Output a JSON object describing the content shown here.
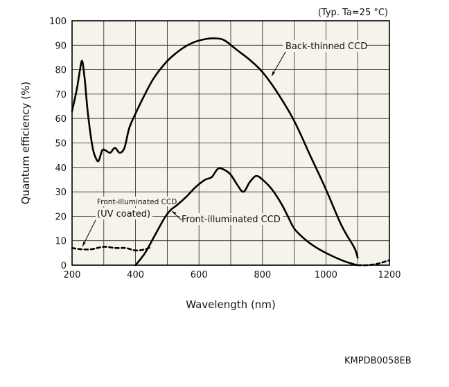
{
  "chart_data": {
    "type": "line",
    "xlabel": "Wavelength (nm)",
    "ylabel": "Quantum efficiency (%)",
    "xlim": [
      200,
      1200
    ],
    "ylim": [
      0,
      100
    ],
    "xticks": [
      200,
      400,
      600,
      800,
      1000,
      1200
    ],
    "yticks": [
      0,
      10,
      20,
      30,
      40,
      50,
      60,
      70,
      80,
      90,
      100
    ],
    "grid": true,
    "note": "(Typ. Ta=25 °C)",
    "series": [
      {
        "name": "Back-thinned CCD",
        "x": [
          200,
          215,
          225,
          232,
          240,
          250,
          265,
          278,
          285,
          295,
          305,
          320,
          335,
          350,
          365,
          380,
          400,
          430,
          460,
          500,
          540,
          580,
          620,
          650,
          680,
          720,
          760,
          800,
          850,
          900,
          950,
          1000,
          1050,
          1090,
          1100
        ],
        "y": [
          63,
          72,
          80,
          83.5,
          76,
          62,
          48,
          43,
          43,
          47,
          47,
          46,
          48,
          46,
          48,
          56,
          62,
          70,
          77,
          83.5,
          88,
          91,
          92.5,
          92.8,
          92,
          88,
          84,
          79,
          70,
          59,
          45,
          31,
          16,
          7,
          3
        ]
      },
      {
        "name": "Front-illuminated CCD",
        "x": [
          400,
          430,
          460,
          490,
          510,
          530,
          560,
          590,
          620,
          640,
          660,
          680,
          700,
          720,
          740,
          760,
          780,
          800,
          830,
          860,
          880,
          900,
          930,
          960,
          1000,
          1050,
          1090,
          1100
        ],
        "y": [
          0,
          5,
          12,
          19,
          22.5,
          24.5,
          28,
          32,
          35,
          36,
          39.5,
          39,
          37,
          33,
          30,
          34,
          36.5,
          35,
          31,
          25,
          20,
          15,
          11,
          8,
          5,
          2,
          0.3,
          0
        ]
      },
      {
        "name": "Front-illuminated CCD (UV coated)",
        "style": "dashed",
        "x": [
          200,
          230,
          260,
          300,
          340,
          370,
          400,
          430,
          450
        ],
        "y": [
          7,
          6.5,
          6.5,
          7.5,
          7,
          7,
          6,
          6.5,
          7.5
        ]
      },
      {
        "name": "Back-thinned CCD (extension)",
        "style": "dashed",
        "x": [
          1100,
          1130,
          1160,
          1180,
          1200
        ],
        "y": [
          0,
          0,
          0.5,
          1.2,
          2
        ]
      }
    ],
    "annotations": [
      {
        "text": "Back-thinned CCD"
      },
      {
        "text": "Front-illuminated CCD"
      },
      {
        "text": "Front-illuminated CCD"
      },
      {
        "text": "(UV coated)"
      }
    ]
  },
  "doc_code": "KMPDB0058EB"
}
